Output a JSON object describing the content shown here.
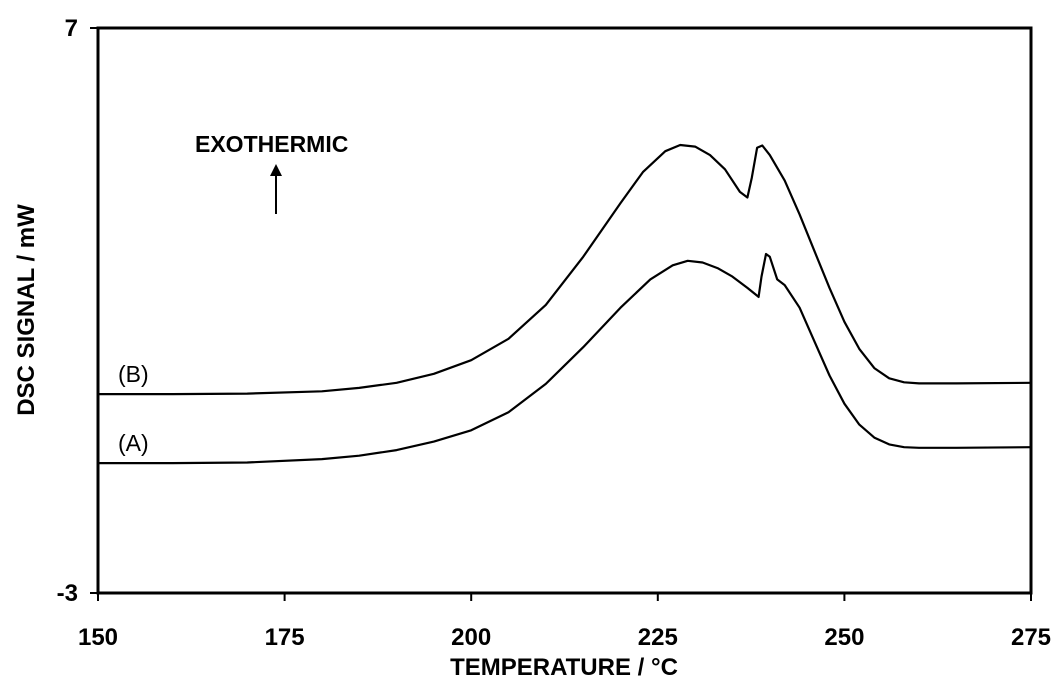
{
  "chart_data": {
    "type": "line",
    "title": "",
    "xlabel": "TEMPERATURE / °C",
    "ylabel": "DSC SIGNAL / mW",
    "xlim": [
      150,
      275
    ],
    "ylim": [
      -3,
      7
    ],
    "x_ticks": [
      "150",
      "175",
      "200",
      "225",
      "250",
      "275"
    ],
    "y_ticks": [
      "7",
      "-3"
    ],
    "grid": false,
    "annotation": {
      "text": "EXOTHERMIC",
      "arrow": "up"
    },
    "series_color": "#000000",
    "series": [
      {
        "name": "(B)",
        "points": [
          [
            150,
            0.52
          ],
          [
            160,
            0.52
          ],
          [
            170,
            0.53
          ],
          [
            180,
            0.57
          ],
          [
            185,
            0.63
          ],
          [
            190,
            0.72
          ],
          [
            195,
            0.88
          ],
          [
            200,
            1.12
          ],
          [
            205,
            1.5
          ],
          [
            210,
            2.1
          ],
          [
            215,
            2.95
          ],
          [
            220,
            3.9
          ],
          [
            223,
            4.45
          ],
          [
            226,
            4.82
          ],
          [
            228,
            4.93
          ],
          [
            230,
            4.9
          ],
          [
            232,
            4.75
          ],
          [
            234,
            4.5
          ],
          [
            236,
            4.1
          ],
          [
            237,
            4.0
          ],
          [
            237.6,
            4.35
          ],
          [
            238.3,
            4.88
          ],
          [
            239,
            4.92
          ],
          [
            240,
            4.75
          ],
          [
            242,
            4.3
          ],
          [
            244,
            3.7
          ],
          [
            246,
            3.05
          ],
          [
            248,
            2.4
          ],
          [
            250,
            1.8
          ],
          [
            252,
            1.32
          ],
          [
            254,
            0.98
          ],
          [
            256,
            0.8
          ],
          [
            258,
            0.73
          ],
          [
            260,
            0.71
          ],
          [
            265,
            0.71
          ],
          [
            275,
            0.72
          ]
        ]
      },
      {
        "name": "(A)",
        "points": [
          [
            150,
            -0.7
          ],
          [
            160,
            -0.7
          ],
          [
            170,
            -0.69
          ],
          [
            180,
            -0.63
          ],
          [
            185,
            -0.57
          ],
          [
            190,
            -0.47
          ],
          [
            195,
            -0.32
          ],
          [
            200,
            -0.12
          ],
          [
            205,
            0.2
          ],
          [
            210,
            0.7
          ],
          [
            215,
            1.35
          ],
          [
            220,
            2.05
          ],
          [
            224,
            2.55
          ],
          [
            227,
            2.8
          ],
          [
            229,
            2.88
          ],
          [
            231,
            2.85
          ],
          [
            233,
            2.75
          ],
          [
            235,
            2.6
          ],
          [
            237,
            2.4
          ],
          [
            238.5,
            2.24
          ],
          [
            238.9,
            2.6
          ],
          [
            239.5,
            3.0
          ],
          [
            240,
            2.95
          ],
          [
            241,
            2.55
          ],
          [
            242,
            2.45
          ],
          [
            244,
            2.05
          ],
          [
            246,
            1.45
          ],
          [
            248,
            0.85
          ],
          [
            250,
            0.35
          ],
          [
            252,
            -0.02
          ],
          [
            254,
            -0.25
          ],
          [
            256,
            -0.37
          ],
          [
            258,
            -0.42
          ],
          [
            260,
            -0.43
          ],
          [
            265,
            -0.43
          ],
          [
            275,
            -0.42
          ]
        ]
      }
    ]
  }
}
